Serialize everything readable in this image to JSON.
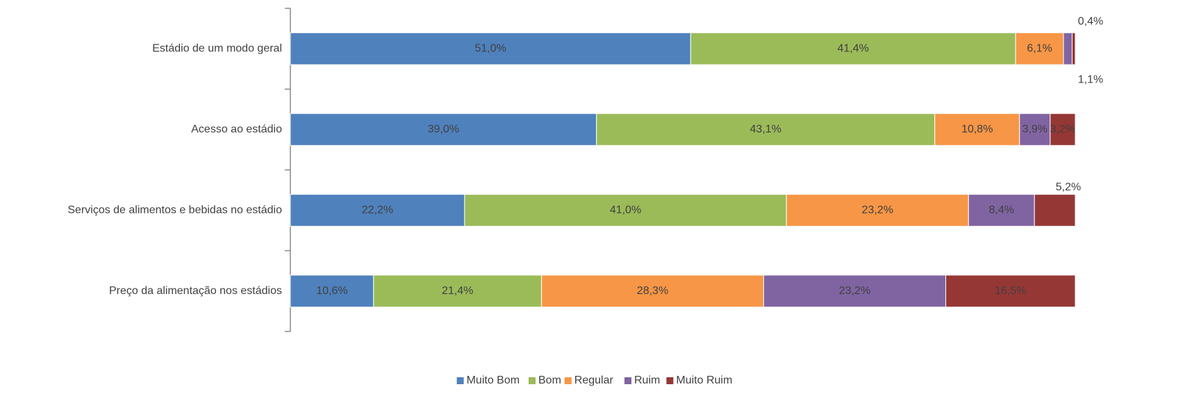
{
  "chart_data": {
    "type": "stacked-bar-horizontal",
    "categories": [
      "Estádio de um modo geral",
      "Acesso ao estádio",
      "Serviços de alimentos  e bebidas no estádio",
      "Preço da alimentação nos estádios"
    ],
    "series": [
      {
        "name": "Muito Bom",
        "color": "#4f81bd",
        "values": [
          51.0,
          39.0,
          22.2,
          10.6
        ],
        "value_labels": [
          "51,0%",
          "39,0%",
          "22,2%",
          "10,6%"
        ]
      },
      {
        "name": "Bom",
        "color": "#9bbb59",
        "values": [
          41.4,
          43.1,
          41.0,
          21.4
        ],
        "value_labels": [
          "41,4%",
          "43,1%",
          "41,0%",
          "21,4%"
        ]
      },
      {
        "name": "Regular",
        "color": "#f79646",
        "values": [
          6.1,
          10.8,
          23.2,
          28.3
        ],
        "value_labels": [
          "6,1%",
          "10,8%",
          "23,2%",
          "28,3%"
        ]
      },
      {
        "name": "Ruim",
        "color": "#8064a2",
        "values": [
          1.1,
          3.9,
          8.4,
          23.2
        ],
        "value_labels": [
          "1,1%",
          "3,9%",
          "8,4%",
          "23,2%"
        ]
      },
      {
        "name": "Muito Ruim",
        "color": "#953735",
        "values": [
          0.4,
          3.2,
          5.2,
          16.5
        ],
        "value_labels": [
          "0,4%",
          "3,2%",
          "5,2%",
          "16,5%"
        ]
      }
    ],
    "legend": "bottom"
  }
}
